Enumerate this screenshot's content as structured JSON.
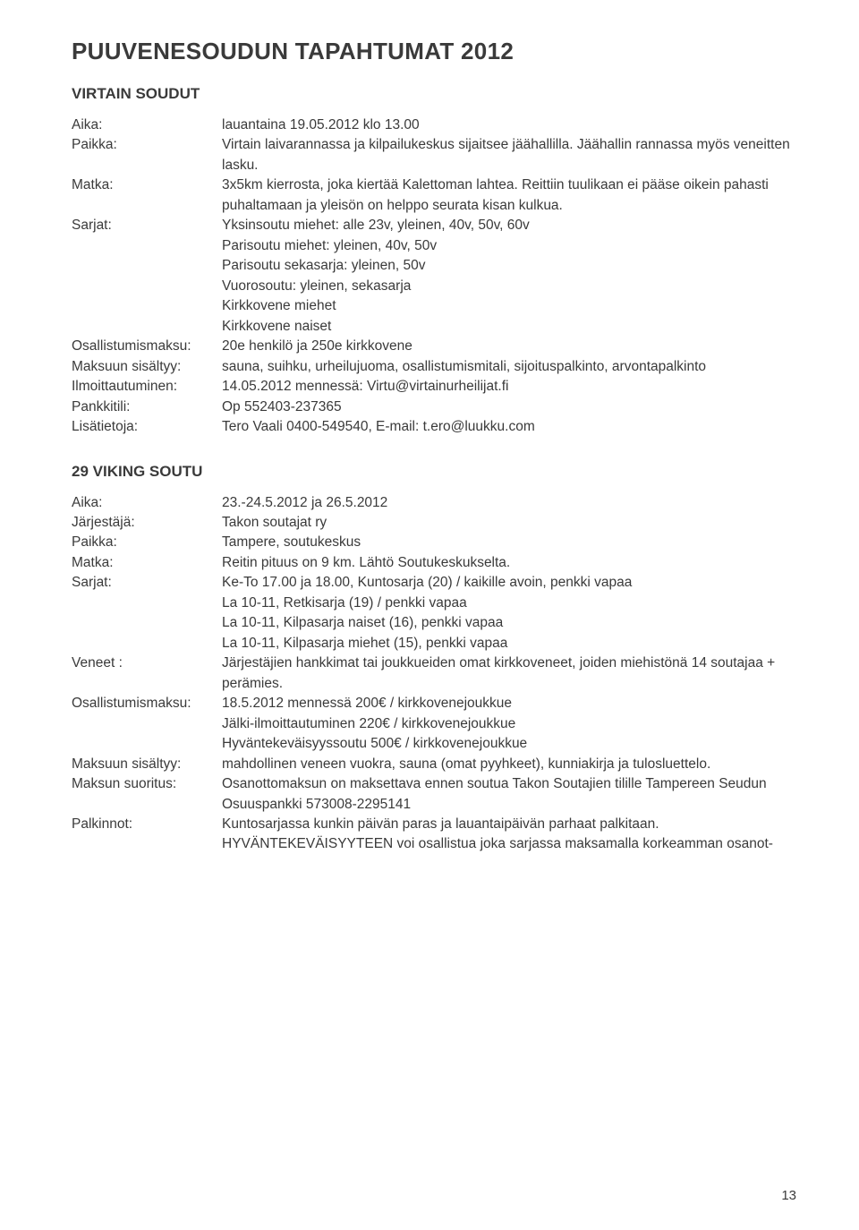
{
  "page_title": "PUUVENESOUDUN TAPAHTUMAT 2012",
  "page_number": "13",
  "events": [
    {
      "heading": "VIRTAIN SOUDUT",
      "rows": [
        {
          "label": "Aika:",
          "value": [
            "lauantaina 19.05.2012 klo 13.00"
          ]
        },
        {
          "label": "Paikka:",
          "value": [
            "Virtain laivarannassa ja kilpailukeskus sijaitsee jäähallilla. Jäähallin rannassa myös veneitten lasku."
          ]
        },
        {
          "label": "Matka:",
          "value": [
            "3x5km kierrosta, joka kiertää Kalettoman lahtea. Reittiin tuulikaan ei pääse oikein pahasti puhaltamaan ja yleisön on helppo seurata kisan kulkua."
          ]
        },
        {
          "label": "Sarjat:",
          "value": [
            "Yksinsoutu miehet: alle 23v, yleinen, 40v, 50v, 60v",
            "Parisoutu miehet: yleinen, 40v, 50v",
            "Parisoutu sekasarja: yleinen, 50v",
            "Vuorosoutu: yleinen, sekasarja",
            "Kirkkovene miehet",
            "Kirkkovene naiset"
          ]
        },
        {
          "label": "Osallistumismaksu:",
          "value": [
            "20e henkilö ja 250e kirkkovene"
          ]
        },
        {
          "label": "Maksuun sisältyy:",
          "value": [
            "sauna, suihku, urheilujuoma, osallistumismitali, sijoituspalkinto, arvontapalkinto"
          ]
        },
        {
          "label": "Ilmoittautuminen:",
          "value": [
            "14.05.2012 mennessä: Virtu@virtainurheilijat.fi"
          ]
        },
        {
          "label": "Pankkitili:",
          "value": [
            "Op 552403-237365"
          ]
        },
        {
          "label": "Lisätietoja:",
          "value": [
            "Tero Vaali 0400-549540, E-mail: t.ero@luukku.com"
          ]
        }
      ]
    },
    {
      "heading": "29 VIKING SOUTU",
      "rows": [
        {
          "label": "Aika:",
          "value": [
            "23.-24.5.2012 ja 26.5.2012"
          ]
        },
        {
          "label": "Järjestäjä:",
          "value": [
            "Takon soutajat ry"
          ]
        },
        {
          "label": "Paikka:",
          "value": [
            "Tampere, soutukeskus"
          ]
        },
        {
          "label": "Matka:",
          "value": [
            "Reitin pituus on 9 km. Lähtö Soutukeskukselta."
          ]
        },
        {
          "label": "Sarjat:",
          "value": [
            "Ke-To 17.00 ja 18.00, Kuntosarja (20) / kaikille avoin, penkki vapaa",
            "La 10-11, Retkisarja (19) / penkki vapaa",
            "La 10-11, Kilpasarja naiset (16), penkki vapaa",
            "La 10-11, Kilpasarja miehet (15), penkki vapaa"
          ]
        },
        {
          "label": "Veneet :",
          "value": [
            "Järjestäjien hankkimat tai joukkueiden omat kirkkoveneet, joiden miehistönä 14 soutajaa + perämies."
          ]
        },
        {
          "label": "Osallistumismaksu:",
          "value": [
            "18.5.2012 mennessä 200€ / kirkkovenejoukkue",
            "Jälki-ilmoittautuminen 220€ / kirkkovenejoukkue",
            "Hyväntekeväisyyssoutu 500€ / kirkkovenejoukkue"
          ]
        },
        {
          "label": "Maksuun sisältyy:",
          "value": [
            "mahdollinen veneen vuokra, sauna (omat pyyhkeet), kunniakirja ja tulosluettelo."
          ]
        },
        {
          "label": "Maksun suoritus:",
          "value": [
            "Osanottomaksun on maksettava ennen soutua Takon Soutajien tilille Tampereen Seudun Osuuspankki 573008-2295141"
          ]
        },
        {
          "label": "Palkinnot:",
          "value": [
            "Kuntosarjassa kunkin päivän paras ja lauantaipäivän parhaat palkitaan.",
            "HYVÄNTEKEVÄISYYTEEN voi osallistua joka sarjassa maksamalla korkeamman osanot-"
          ]
        }
      ]
    }
  ]
}
